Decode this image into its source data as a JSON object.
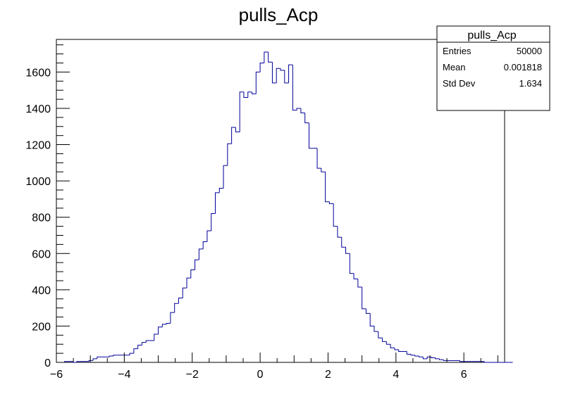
{
  "chart_data": {
    "type": "bar",
    "title": "pulls_Acp",
    "xlabel": "",
    "ylabel": "",
    "xlim": [
      -6,
      7.2
    ],
    "ylim": [
      0,
      1780
    ],
    "x_ticks": [
      -6,
      -4,
      -2,
      0,
      2,
      4,
      6
    ],
    "x_tick_labels": [
      "−6",
      "−4",
      "−2",
      "0",
      "2",
      "4",
      "6"
    ],
    "y_ticks": [
      0,
      200,
      400,
      600,
      800,
      1000,
      1200,
      1400,
      1600
    ],
    "y_tick_labels": [
      "0",
      "200",
      "400",
      "600",
      "800",
      "1000",
      "1200",
      "1400",
      "1600"
    ],
    "grid": false,
    "legend": "none",
    "line_color": "#000099",
    "bin_start": -6,
    "bin_width": 0.12,
    "values": [
      0,
      0,
      5,
      5,
      0,
      5,
      5,
      5,
      10,
      20,
      30,
      30,
      30,
      35,
      40,
      40,
      40,
      40,
      50,
      75,
      95,
      110,
      120,
      120,
      155,
      195,
      210,
      215,
      275,
      325,
      355,
      410,
      465,
      510,
      565,
      625,
      665,
      725,
      820,
      935,
      960,
      1085,
      1205,
      1295,
      1270,
      1490,
      1460,
      1490,
      1480,
      1600,
      1650,
      1710,
      1655,
      1540,
      1620,
      1610,
      1540,
      1640,
      1390,
      1400,
      1375,
      1320,
      1180,
      1180,
      1070,
      1050,
      885,
      875,
      750,
      690,
      635,
      600,
      490,
      460,
      415,
      295,
      270,
      200,
      170,
      135,
      115,
      100,
      80,
      70,
      60,
      60,
      45,
      40,
      35,
      30,
      20,
      30,
      25,
      20,
      15,
      10,
      10,
      10,
      10,
      5,
      5,
      5,
      5,
      5,
      5,
      0,
      0,
      0,
      0,
      0,
      0,
      0
    ]
  },
  "stats_box": {
    "title": "pulls_Acp",
    "rows": [
      {
        "label": "Entries",
        "value": "50000"
      },
      {
        "label": "Mean",
        "value": "0.001818"
      },
      {
        "label": "Std Dev",
        "value": "1.634"
      }
    ]
  }
}
